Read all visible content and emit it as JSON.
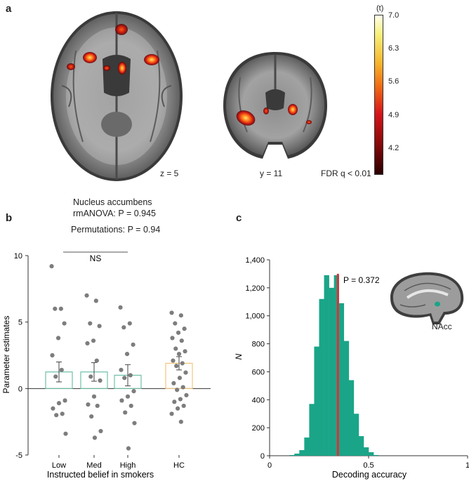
{
  "panel_a": {
    "letter": "a",
    "axial_label": "z = 5",
    "coronal_label": "y = 11",
    "threshold_label": "FDR q < 0.01",
    "colorbar": {
      "title": "(t)",
      "ticks": [
        "7.0",
        "6.3",
        "5.6",
        "4.9",
        "4.2"
      ],
      "min": 3.6,
      "max": 7.0
    }
  },
  "panel_b": {
    "letter": "b",
    "region": "Nucleus accumbens",
    "rmanova": "rmANOVA: P = 0.945",
    "permutations": "Permutations: P = 0.94",
    "sig_label": "NS"
  },
  "panel_c": {
    "letter": "c",
    "p_label": "P = 0.372",
    "inset_label": "NAcc"
  },
  "chart_data": [
    {
      "type": "bar",
      "title": "Nucleus accumbens",
      "xlabel": "Instructed belief in smokers",
      "ylabel": "Parameter estimates",
      "categories": [
        "Low",
        "Med",
        "High",
        "HC"
      ],
      "values": [
        1.25,
        1.25,
        1.0,
        1.9
      ],
      "errors": [
        0.75,
        0.7,
        0.8,
        0.5
      ],
      "bar_colors": [
        "#6fc0a8",
        "#6fc0a8",
        "#6fc0a8",
        "#f2c67a"
      ],
      "ylim": [
        -5,
        10
      ],
      "yticks": [
        -5,
        0,
        5,
        10
      ],
      "points": [
        [
          9.2,
          6.0,
          6.0,
          4.9,
          3.8,
          2.5,
          1.4,
          0.9,
          -0.9,
          -1.1,
          -1.5,
          -1.9,
          -2.0,
          -3.4
        ],
        [
          7.0,
          6.6,
          4.9,
          4.7,
          3.6,
          3.4,
          2.1,
          0.9,
          0.6,
          -0.6,
          -1.2,
          -1.3,
          -2.1,
          -3.2,
          -3.7
        ],
        [
          6.1,
          4.9,
          4.6,
          3.3,
          2.6,
          1.4,
          1.0,
          0.8,
          -0.2,
          -0.6,
          -0.9,
          -1.3,
          -1.8,
          -2.6,
          -4.5
        ],
        [
          5.7,
          5.5,
          4.9,
          4.5,
          4.2,
          3.8,
          3.6,
          3.0,
          2.8,
          2.6,
          2.1,
          1.9,
          1.7,
          1.2,
          0.8,
          0.4,
          0.1,
          -0.1,
          -0.5,
          -0.8,
          -1.0,
          -1.3,
          -1.5,
          -1.9,
          -2.5
        ]
      ],
      "significance": {
        "label": "NS",
        "from": "Low",
        "to": "High"
      }
    },
    {
      "type": "bar",
      "subtype": "histogram",
      "xlabel": "Decoding accuracy",
      "ylabel": "N",
      "bin_width": 0.025,
      "bin_starts": [
        0.1,
        0.125,
        0.15,
        0.175,
        0.2,
        0.225,
        0.25,
        0.275,
        0.3,
        0.325,
        0.35,
        0.375,
        0.4,
        0.425,
        0.45,
        0.475,
        0.5,
        0.525
      ],
      "counts": [
        5,
        15,
        40,
        130,
        370,
        780,
        1120,
        1290,
        1200,
        1290,
        1090,
        820,
        540,
        300,
        140,
        60,
        25,
        5
      ],
      "bar_color": "#1aa588",
      "observed": 0.345,
      "observed_color": "#d9323a",
      "xlim": [
        0,
        1
      ],
      "xticks": [
        0,
        0.5,
        1
      ],
      "ylim": [
        0,
        1400
      ],
      "yticks": [
        0,
        200,
        400,
        600,
        800,
        1000,
        1200,
        1400
      ],
      "ytick_labels": [
        "0",
        "200",
        "400",
        "600",
        "800",
        "1,000",
        "1,200",
        "1,400"
      ],
      "annotation": "P = 0.372"
    }
  ]
}
